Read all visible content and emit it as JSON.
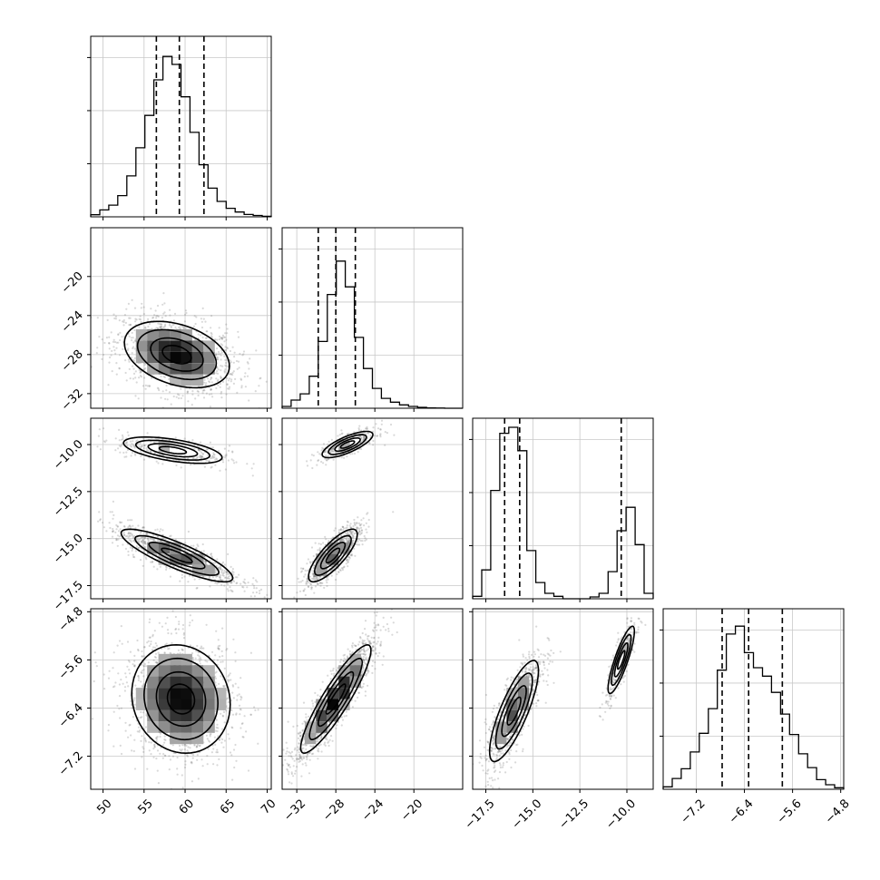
{
  "chart_data": {
    "type": "corner",
    "title": "",
    "parameters": [
      {
        "range": [
          48.5,
          70.5
        ],
        "ticks": [
          50,
          55,
          60,
          65,
          70
        ],
        "tick_labels": [
          "50",
          "55",
          "60",
          "65",
          "70"
        ],
        "quantiles": [
          56.5,
          59.3,
          62.3
        ]
      },
      {
        "range": [
          -33.5,
          -15.0
        ],
        "ticks": [
          -32,
          -28,
          -24,
          -20
        ],
        "tick_labels": [
          "−32",
          "−28",
          "−24",
          "−20"
        ],
        "quantiles": [
          -29.8,
          -28.0,
          -26.0
        ]
      },
      {
        "range": [
          -18.2,
          -8.6
        ],
        "ticks": [
          -17.5,
          -15.0,
          -12.5,
          -10.0
        ],
        "tick_labels": [
          "−17.5",
          "−15.0",
          "−12.5",
          "−10.0"
        ],
        "quantiles": [
          -16.5,
          -15.7,
          -10.3
        ]
      },
      {
        "range": [
          -7.75,
          -4.75
        ],
        "ticks": [
          -7.2,
          -6.4,
          -5.6,
          -4.8
        ],
        "tick_labels": [
          "−7.2",
          "−6.4",
          "−5.6",
          "−4.8"
        ],
        "quantiles": [
          -6.77,
          -6.33,
          -5.77
        ]
      }
    ],
    "histograms": [
      [
        0.4,
        1.3,
        2.2,
        4.0,
        7.7,
        13.0,
        19.1,
        25.8,
        30.2,
        28.7,
        22.6,
        15.9,
        9.8,
        5.4,
        2.9,
        1.6,
        0.9,
        0.45,
        0.25,
        0.1
      ],
      [
        0.4,
        1.8,
        3.2,
        7.1,
        14.8,
        25.2,
        32.6,
        26.9,
        15.7,
        8.8,
        4.4,
        2.2,
        1.35,
        0.75,
        0.4,
        0.2,
        0.08,
        0.04,
        0.0,
        0.0
      ],
      [
        0.4,
        4.8,
        18.0,
        27.5,
        28.5,
        24.6,
        8.0,
        2.7,
        0.9,
        0.4,
        0.0,
        0.0,
        0.0,
        0.3,
        0.9,
        4.5,
        11.3,
        15.2,
        9.0,
        0.9
      ],
      [
        0.4,
        1.8,
        3.4,
        6.2,
        9.3,
        13.4,
        19.8,
        25.8,
        27.1,
        22.7,
        20.2,
        18.8,
        16.1,
        12.5,
        9.1,
        5.9,
        3.6,
        1.6,
        0.75,
        0.25
      ]
    ],
    "blobs": [
      {
        "panel": [
          1,
          0
        ],
        "clusters": [
          {
            "c": [
              59,
              -28
            ],
            "sd": [
              3.2,
              1.7
            ],
            "rho": -0.35,
            "w": 1
          }
        ]
      },
      {
        "panel": [
          2,
          0
        ],
        "clusters": [
          {
            "c": [
              58.5,
              -10.3
            ],
            "sd": [
              3.0,
              0.35
            ],
            "rho": -0.55,
            "w": 0.32
          },
          {
            "c": [
              59,
              -15.9
            ],
            "sd": [
              3.4,
              0.7
            ],
            "rho": -0.85,
            "w": 0.68
          }
        ]
      },
      {
        "panel": [
          2,
          1
        ],
        "clusters": [
          {
            "c": [
              -26.8,
              -10.0
            ],
            "sd": [
              1.3,
              0.35
            ],
            "rho": 0.75,
            "w": 0.32
          },
          {
            "c": [
              -28.3,
              -15.9
            ],
            "sd": [
              1.25,
              0.7
            ],
            "rho": 0.8,
            "w": 0.68
          }
        ]
      },
      {
        "panel": [
          3,
          0
        ],
        "clusters": [
          {
            "c": [
              59.5,
              -6.25
            ],
            "sd": [
              3.0,
              0.45
            ],
            "rho": -0.1,
            "w": 1
          }
        ]
      },
      {
        "panel": [
          3,
          1
        ],
        "clusters": [
          {
            "c": [
              -28.0,
              -6.25
            ],
            "sd": [
              1.8,
              0.45
            ],
            "rho": 0.9,
            "w": 1
          }
        ]
      },
      {
        "panel": [
          3,
          2
        ],
        "clusters": [
          {
            "c": [
              -16.0,
              -6.45
            ],
            "sd": [
              0.65,
              0.42
            ],
            "rho": 0.8,
            "w": 0.68
          },
          {
            "c": [
              -10.3,
              -5.6
            ],
            "sd": [
              0.35,
              0.28
            ],
            "rho": 0.85,
            "w": 0.32
          }
        ]
      }
    ],
    "grid": true,
    "legend": "none"
  }
}
